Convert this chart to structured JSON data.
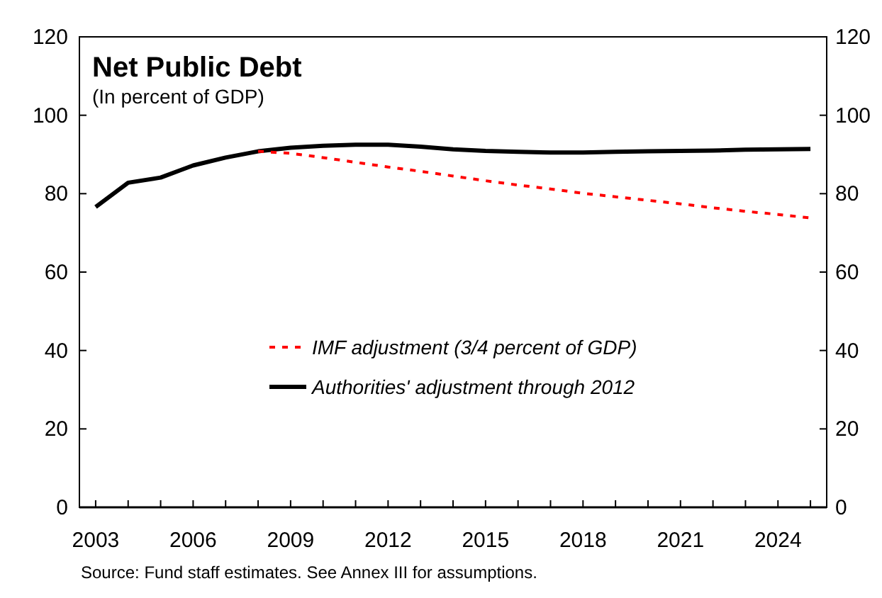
{
  "chart_data": {
    "type": "line",
    "title": "Net Public Debt",
    "subtitle": "(In percent of GDP)",
    "annotations": [
      "Source: Fund staff estimates. See Annex III for assumptions."
    ],
    "x": [
      2003,
      2004,
      2005,
      2006,
      2007,
      2008,
      2009,
      2010,
      2011,
      2012,
      2013,
      2014,
      2015,
      2016,
      2017,
      2018,
      2019,
      2020,
      2021,
      2022,
      2023,
      2024,
      2025
    ],
    "series": [
      {
        "name": "IMF adjustment (3/4 percent of GDP)",
        "color": "#ff0000",
        "line_style": "dotted",
        "values": [
          null,
          null,
          null,
          null,
          null,
          90.8,
          90.3,
          89.2,
          88,
          86.8,
          85.7,
          84.5,
          83.3,
          82.2,
          81.2,
          80.1,
          79.2,
          78.3,
          77.4,
          76.4,
          75.5,
          74.7,
          73.8
        ]
      },
      {
        "name": "Authorities' adjustment through 2012",
        "color": "#000000",
        "line_style": "solid",
        "values": [
          76.6,
          82.8,
          84.1,
          87.2,
          89.2,
          90.8,
          91.7,
          92.2,
          92.5,
          92.5,
          92,
          91.3,
          90.9,
          90.7,
          90.5,
          90.5,
          90.7,
          90.8,
          90.9,
          91,
          91.2,
          91.3,
          91.4
        ]
      }
    ],
    "xlim": [
      2002.5,
      2025.5
    ],
    "xticks": [
      2003,
      {
        "value": 2004,
        "label": null
      },
      {
        "value": 2005,
        "label": null
      },
      2006,
      {
        "value": 2007,
        "label": null
      },
      {
        "value": 2008,
        "label": null
      },
      2009,
      {
        "value": 2010,
        "label": null
      },
      {
        "value": 2011,
        "label": null
      },
      2012,
      {
        "value": 2013,
        "label": null
      },
      {
        "value": 2014,
        "label": null
      },
      2015,
      {
        "value": 2016,
        "label": null
      },
      {
        "value": 2017,
        "label": null
      },
      2018,
      {
        "value": 2019,
        "label": null
      },
      {
        "value": 2020,
        "label": null
      },
      2021,
      {
        "value": 2022,
        "label": null
      },
      {
        "value": 2023,
        "label": null
      },
      2024,
      {
        "value": 2025,
        "label": null
      }
    ],
    "ylim": [
      0,
      120
    ],
    "yticks": [
      0,
      20,
      40,
      60,
      80,
      100,
      120
    ],
    "y2lim": [
      0,
      120
    ],
    "y2ticks": [
      0,
      20,
      40,
      60,
      80,
      100,
      120
    ],
    "grid": false,
    "legend": "bottom",
    "marker": "none"
  }
}
